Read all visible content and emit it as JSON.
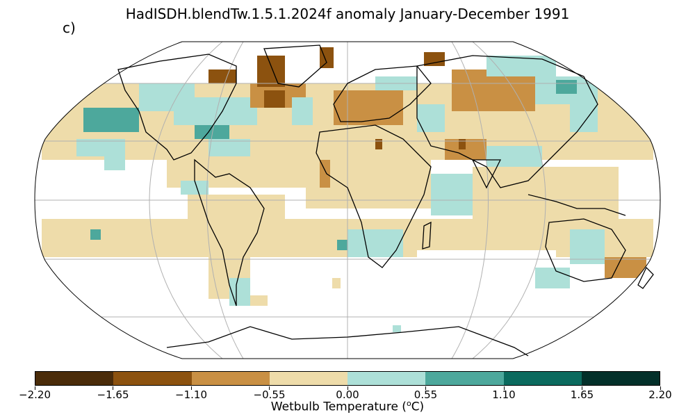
{
  "figure": {
    "title": "HadISDH.blendTw.1.5.1.2024f anomaly January-December 1991",
    "panel_label": "c)"
  },
  "colorbar": {
    "label_prefix": "Wetbulb Temperature (",
    "label_unit_sup": "o",
    "label_suffix": "C)",
    "ticks": [
      "−2.20",
      "−1.65",
      "−1.10",
      "−0.55",
      "0.00",
      "0.55",
      "1.10",
      "1.65",
      "2.20"
    ],
    "colors": [
      "#4a2c0a",
      "#8c520f",
      "#c99044",
      "#eedcaa",
      "#ade0d8",
      "#4da89c",
      "#0b6a5e",
      "#03302a"
    ]
  },
  "map": {
    "projection": "Robinson",
    "grid_color": "#b0b0b0",
    "coast_color": "#000000"
  }
}
